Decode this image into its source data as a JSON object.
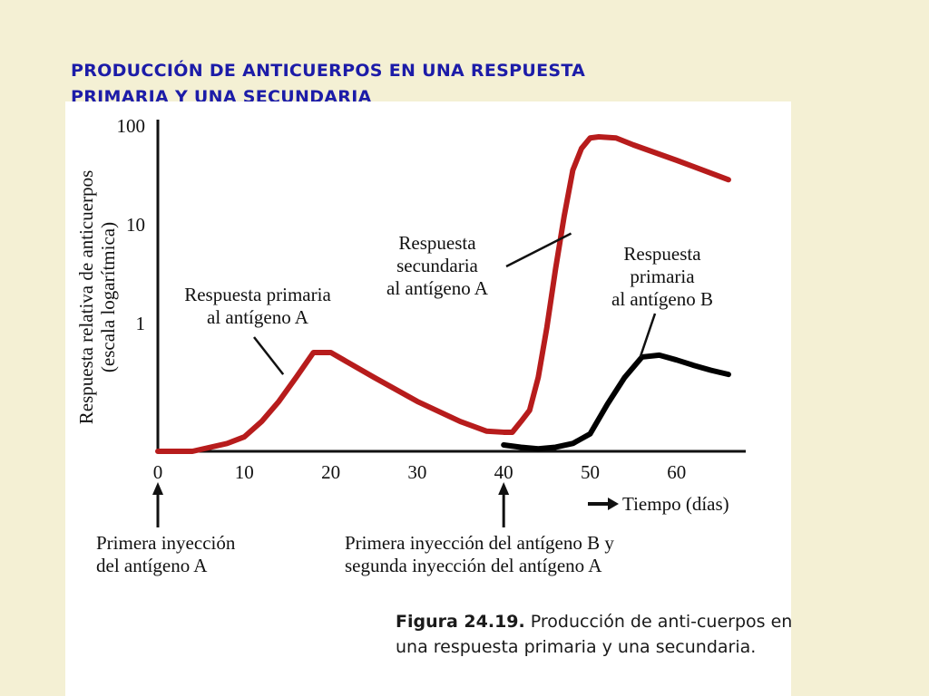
{
  "slide": {
    "title_lines": [
      "PRODUCCIÓN DE ANTICUERPOS EN UNA RESPUESTA",
      "PRIMARIA Y UNA SECUNDARIA"
    ]
  },
  "caption": {
    "number": "Figura 24.19.",
    "text": " Producción de anti-cuerpos en una respuesta primaria y una secundaria."
  },
  "colors": {
    "antigen_a": "#b71c1c",
    "antigen_b": "#000000",
    "title": "#1c1ca8"
  },
  "chart_data": {
    "type": "line",
    "title": "",
    "xlabel": "Tiempo (días)",
    "ylabel": [
      "Respuesta relativa de anticuerpos",
      "(escala logarítmica)"
    ],
    "x_ticks": [
      0,
      10,
      20,
      30,
      40,
      50,
      60
    ],
    "y_ticks": [
      {
        "value": 1,
        "label": "1"
      },
      {
        "value": 10,
        "label": "10"
      },
      {
        "value": 100,
        "label": "100"
      }
    ],
    "y_scale": "log",
    "xlim": [
      0,
      68
    ],
    "ylim": [
      0.05,
      100
    ],
    "grid": false,
    "series": [
      {
        "name": "Antígeno A",
        "color": "#b71c1c",
        "x": [
          0,
          4,
          8,
          10,
          12,
          14,
          16,
          18,
          20,
          25,
          30,
          35,
          38,
          40,
          41,
          42,
          43,
          44,
          45,
          46,
          47,
          48,
          49,
          50,
          51,
          53,
          55,
          60,
          66
        ],
        "y": [
          0.05,
          0.05,
          0.06,
          0.07,
          0.1,
          0.16,
          0.28,
          0.5,
          0.5,
          0.28,
          0.16,
          0.1,
          0.08,
          0.078,
          0.078,
          0.1,
          0.13,
          0.28,
          0.9,
          3.5,
          12,
          35,
          58,
          74,
          76,
          74,
          63,
          44,
          28
        ]
      },
      {
        "name": "Antígeno B",
        "color": "#000000",
        "x": [
          40,
          42,
          44,
          46,
          48,
          50,
          52,
          54,
          56,
          58,
          60,
          62,
          64,
          66
        ],
        "y": [
          0.058,
          0.055,
          0.053,
          0.055,
          0.06,
          0.075,
          0.15,
          0.28,
          0.45,
          0.47,
          0.42,
          0.37,
          0.33,
          0.3
        ]
      }
    ],
    "annotations": [
      {
        "lines": [
          "Respuesta primaria",
          "al antígeno A"
        ],
        "pointer_to": {
          "x": 14.5,
          "y": 0.3
        }
      },
      {
        "lines": [
          "Respuesta",
          "secundaria",
          "al antígeno A"
        ],
        "pointer_to": {
          "x": 47.8,
          "y": 8
        }
      },
      {
        "lines": [
          "Respuesta",
          "primaria",
          "al antígeno B"
        ],
        "pointer_to": {
          "x": 55.8,
          "y": 0.45
        }
      }
    ],
    "injection_markers": [
      {
        "x": 0,
        "lines": [
          "Primera inyección",
          "del antígeno A"
        ]
      },
      {
        "x": 40,
        "lines": [
          "Primera inyección del antígeno B y",
          "segunda inyección del antígeno A"
        ]
      }
    ]
  }
}
